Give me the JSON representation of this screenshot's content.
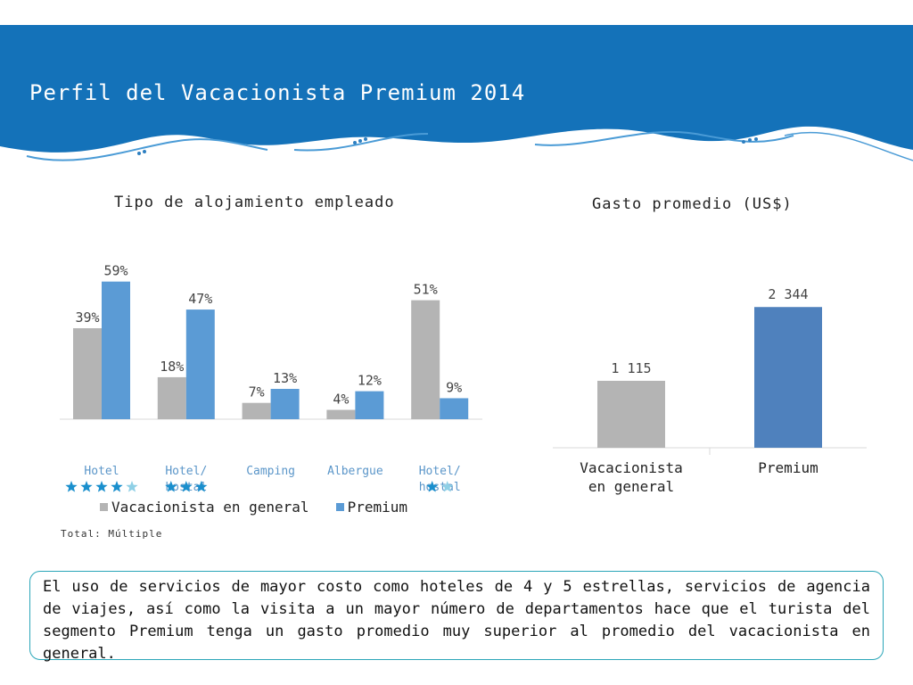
{
  "header": {
    "title": "Perfil del Vacacionista Premium 2014",
    "color": "#1472b9"
  },
  "chart_data": [
    {
      "type": "bar",
      "title": "Tipo de alojamiento empleado",
      "categories": [
        "Hotel",
        "Hotel/ hostal",
        "Camping",
        "Albergue",
        "Hotel/ hostal"
      ],
      "category_lines": [
        [
          "Hotel"
        ],
        [
          "Hotel/",
          "hostal"
        ],
        [
          "Camping"
        ],
        [
          "Albergue"
        ],
        [
          "Hotel/",
          "hostal"
        ]
      ],
      "category_stars": [
        [
          1,
          1,
          1,
          1,
          0.5
        ],
        [
          1,
          1,
          1
        ],
        [],
        [],
        [
          1,
          0.5
        ]
      ],
      "series": [
        {
          "name": "Vacacionista en general",
          "values": [
            39,
            18,
            7,
            4,
            51
          ],
          "labels": [
            "39%",
            "18%",
            "7%",
            "4%",
            "51%"
          ],
          "color": "#b4b4b4"
        },
        {
          "name": "Premium",
          "values": [
            59,
            47,
            13,
            12,
            9
          ],
          "labels": [
            "59%",
            "47%",
            "13%",
            "12%",
            "9%"
          ],
          "color": "#5b9bd5"
        }
      ],
      "legend_position": "bottom",
      "ylim": [
        0,
        65
      ],
      "grid": false,
      "note": "Total: Múltiple"
    },
    {
      "type": "bar",
      "title": "Gasto promedio (US$)",
      "categories": [
        "Vacacionista en general",
        "Premium"
      ],
      "category_lines": [
        [
          "Vacacionista",
          "en general"
        ],
        [
          "Premium"
        ]
      ],
      "values": [
        1115,
        2344
      ],
      "labels": [
        "1 115",
        "2 344"
      ],
      "colors": [
        "#b4b4b4",
        "#4f81bd"
      ],
      "ylim": [
        0,
        2600
      ],
      "grid": false
    }
  ],
  "summary": {
    "text": "El uso de servicios de mayor costo como hoteles de 4 y 5 estrellas, servicios de agencia de viajes, así como la visita a un mayor número de departamentos hace que el turista del segmento Premium tenga un gasto promedio muy superior al promedio del vacacionista en general.",
    "border_color": "#2aa6b8"
  }
}
